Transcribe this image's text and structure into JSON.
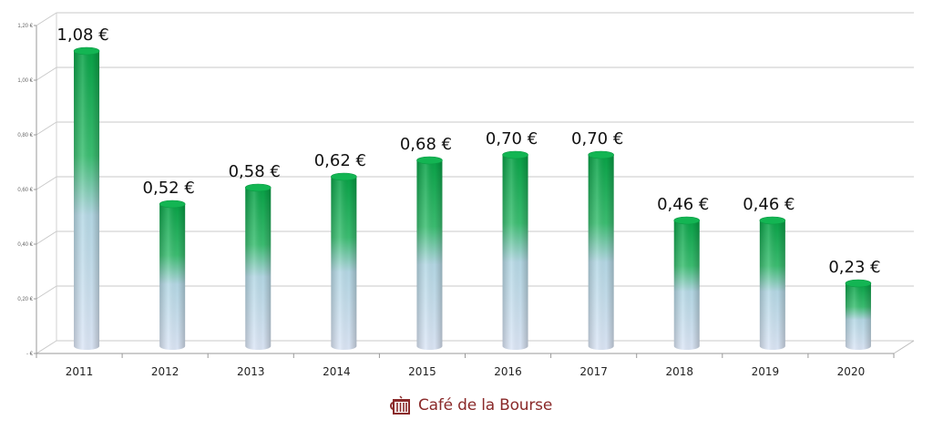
{
  "chart_data": {
    "type": "bar",
    "title": "",
    "xlabel": "",
    "ylabel": "",
    "categories": [
      "2011",
      "2012",
      "2013",
      "2014",
      "2015",
      "2016",
      "2017",
      "2018",
      "2019",
      "2020"
    ],
    "values": [
      1.08,
      0.52,
      0.58,
      0.62,
      0.68,
      0.7,
      0.7,
      0.46,
      0.46,
      0.23
    ],
    "value_labels": [
      "1,08 €",
      "0,52 €",
      "0,58 €",
      "0,62 €",
      "0,68 €",
      "0,70 €",
      "0,70 €",
      "0,46 €",
      "0,46 €",
      "0,23 €"
    ],
    "y_ticks": [
      "- €",
      "0,20 €",
      "0,40 €",
      "0,60 €",
      "0,80 €",
      "1,00 €",
      "1,20 €"
    ],
    "ylim": [
      0,
      1.2
    ],
    "grid": true,
    "legend": null,
    "style": "3d-cylinder",
    "colors": {
      "top": "#0aa64a",
      "bottom": "#d5e2f5",
      "grid": "#c8c8c8"
    }
  },
  "footer": {
    "brand": "Café de la Bourse",
    "icon": "coffee-pot-icon",
    "brand_color": "#8a2a2a"
  }
}
